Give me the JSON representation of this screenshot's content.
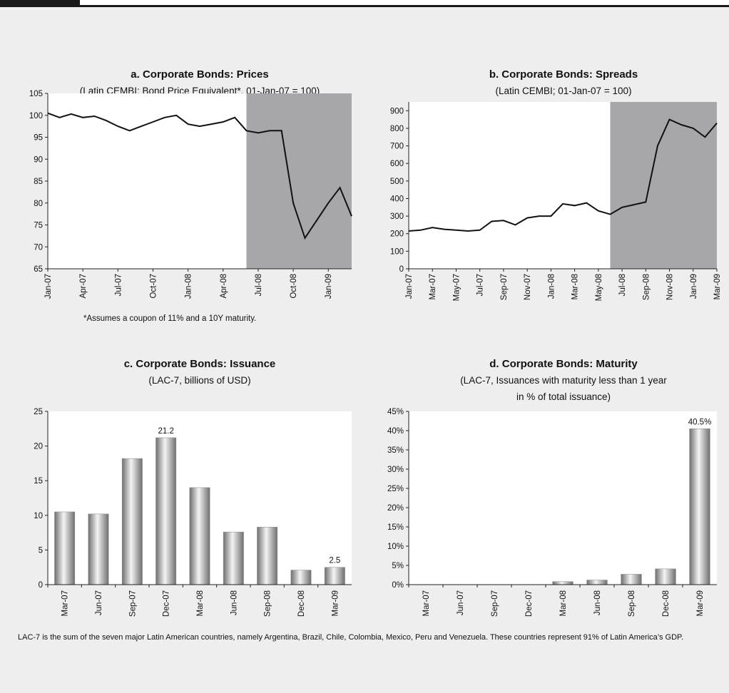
{
  "chart_data": [
    {
      "type": "line",
      "title": "a. Corporate Bonds: Prices",
      "subtitle": [
        "(Latin CEMBI; Bond Price Equivalent*, 01-Jan-07 = 100)"
      ],
      "x": [
        "Jan-07",
        "Feb-07",
        "Mar-07",
        "Apr-07",
        "May-07",
        "Jun-07",
        "Jul-07",
        "Aug-07",
        "Sep-07",
        "Oct-07",
        "Nov-07",
        "Dec-07",
        "Jan-08",
        "Feb-08",
        "Mar-08",
        "Apr-08",
        "May-08",
        "Jun-08",
        "Jul-08",
        "Aug-08",
        "Sep-08",
        "Oct-08",
        "Nov-08",
        "Dec-08",
        "Jan-09",
        "Feb-09",
        "Mar-09"
      ],
      "values": [
        100.5,
        99.5,
        100.3,
        99.5,
        99.8,
        98.8,
        97.5,
        96.5,
        97.5,
        98.5,
        99.5,
        100,
        98,
        97.5,
        98,
        98.5,
        99.5,
        96.5,
        96,
        96.5,
        96.5,
        80,
        72,
        76,
        80,
        83.5,
        77
      ],
      "color": "#111111",
      "shade_from": "Jun-08",
      "shade_color": "#a7a7a9",
      "ylim": [
        65,
        105
      ],
      "yticks": [
        65,
        70,
        75,
        80,
        85,
        90,
        95,
        100,
        105
      ],
      "xticks": [
        "Jan-07",
        "Apr-07",
        "Jul-07",
        "Oct-07",
        "Jan-08",
        "Apr-08",
        "Jul-08",
        "Oct-08",
        "Jan-09"
      ],
      "note": "*Assumes a coupon of 11% and a 10Y maturity."
    },
    {
      "type": "line",
      "title": "b. Corporate Bonds: Spreads",
      "subtitle": [
        "(Latin CEMBI;  01-Jan-07 = 100)"
      ],
      "x": [
        "Jan-07",
        "Feb-07",
        "Mar-07",
        "Apr-07",
        "May-07",
        "Jun-07",
        "Jul-07",
        "Aug-07",
        "Sep-07",
        "Oct-07",
        "Nov-07",
        "Dec-07",
        "Jan-08",
        "Feb-08",
        "Mar-08",
        "Apr-08",
        "May-08",
        "Jun-08",
        "Jul-08",
        "Aug-08",
        "Sep-08",
        "Oct-08",
        "Nov-08",
        "Dec-08",
        "Jan-09",
        "Feb-09",
        "Mar-09"
      ],
      "values": [
        215,
        220,
        235,
        225,
        220,
        215,
        220,
        270,
        275,
        250,
        290,
        300,
        300,
        370,
        360,
        375,
        330,
        310,
        350,
        365,
        380,
        700,
        850,
        820,
        800,
        750,
        830
      ],
      "color": "#111111",
      "shade_from": "Jun-08",
      "shade_color": "#a7a7a9",
      "ylim": [
        0,
        950
      ],
      "yticks": [
        0,
        100,
        200,
        300,
        400,
        500,
        600,
        700,
        800,
        900
      ],
      "xticks": [
        "Jan-07",
        "Mar-07",
        "May-07",
        "Jul-07",
        "Sep-07",
        "Nov-07",
        "Jan-08",
        "Mar-08",
        "May-08",
        "Jul-08",
        "Sep-08",
        "Nov-08",
        "Jan-09",
        "Mar-09"
      ]
    },
    {
      "type": "bar",
      "title": "c. Corporate Bonds: Issuance",
      "subtitle": [
        "(LAC-7, billions of USD)"
      ],
      "categories": [
        "Mar-07",
        "Jun-07",
        "Sep-07",
        "Dec-07",
        "Mar-08",
        "Jun-08",
        "Sep-08",
        "Dec-08",
        "Mar-09"
      ],
      "values": [
        10.5,
        10.2,
        18.2,
        21.2,
        14,
        7.6,
        8.3,
        2.1,
        2.5
      ],
      "value_labels": [
        null,
        null,
        null,
        "21.2",
        null,
        null,
        null,
        null,
        "2.5"
      ],
      "color": "#8a8a8a",
      "ylim": [
        0,
        25
      ],
      "yticks": [
        0,
        5,
        10,
        15,
        20,
        25
      ]
    },
    {
      "type": "bar",
      "title": "d. Corporate Bonds: Maturity",
      "subtitle": [
        "(LAC-7, Issuances with maturity less than 1 year",
        "in % of total issuance)"
      ],
      "categories": [
        "Mar-07",
        "Jun-07",
        "Sep-07",
        "Dec-07",
        "Mar-08",
        "Jun-08",
        "Sep-08",
        "Dec-08",
        "Mar-09"
      ],
      "values": [
        0,
        0,
        0,
        0,
        0.8,
        1.2,
        2.7,
        4.1,
        40.5
      ],
      "value_labels": [
        null,
        null,
        null,
        null,
        null,
        null,
        null,
        null,
        "40.5%"
      ],
      "color": "#8a8a8a",
      "ylim": [
        0,
        45
      ],
      "yticks": [
        {
          "value": 0,
          "label": "0%"
        },
        {
          "value": 5,
          "label": "5%"
        },
        {
          "value": 10,
          "label": "10%"
        },
        {
          "value": 15,
          "label": "15%"
        },
        {
          "value": 20,
          "label": "20%"
        },
        {
          "value": 25,
          "label": "25%"
        },
        {
          "value": 30,
          "label": "30%"
        },
        {
          "value": 35,
          "label": "35%"
        },
        {
          "value": 40,
          "label": "40%"
        },
        {
          "value": 45,
          "label": "45%"
        }
      ]
    }
  ],
  "footnote": "LAC-7 is the sum of the seven major Latin American countries, namely Argentina, Brazil, Chile, Colombia, Mexico, Peru and Venezuela. These countries represent 91% of Latin America’s GDP."
}
